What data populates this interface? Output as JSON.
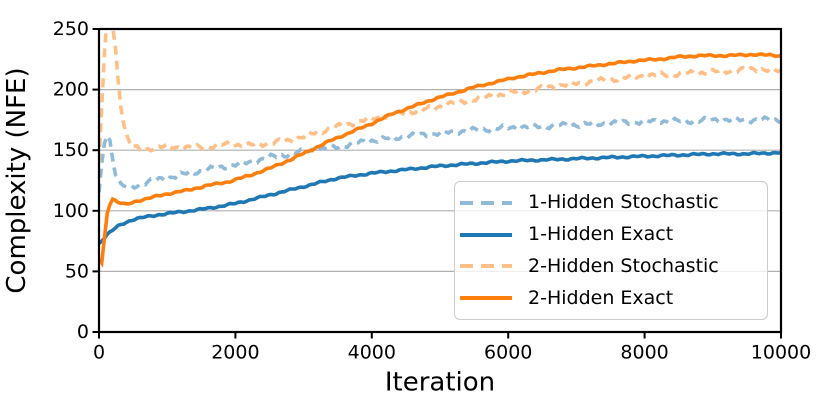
{
  "figure": {
    "background": "#ffffff"
  },
  "chart_data": {
    "type": "line",
    "title": "",
    "xlabel": "Iteration",
    "ylabel": "Complexity (NFE)",
    "xlim": [
      0,
      10000
    ],
    "ylim": [
      0,
      250
    ],
    "xticks": [
      0,
      2000,
      4000,
      6000,
      8000,
      10000
    ],
    "yticks": [
      0,
      50,
      100,
      150,
      200,
      250
    ],
    "grid": "horizontal",
    "grid_color": "#b0b0b0",
    "axis_color": "#000000",
    "legend": {
      "position": "lower-right-inside",
      "border_color": "#cccccc",
      "background": "rgba(255,255,255,0.8)"
    },
    "series": [
      {
        "id": "1-hidden-stochastic",
        "name": "1-Hidden Stochastic",
        "color": "#8fbbd9",
        "line_style": "dashed",
        "jitter": 2.4,
        "points": [
          [
            0,
            113
          ],
          [
            60,
            150
          ],
          [
            100,
            165
          ],
          [
            160,
            158
          ],
          [
            230,
            133
          ],
          [
            320,
            121
          ],
          [
            450,
            119
          ],
          [
            600,
            122
          ],
          [
            800,
            125
          ],
          [
            1000,
            127
          ],
          [
            1300,
            131
          ],
          [
            1600,
            134
          ],
          [
            1900,
            137
          ],
          [
            2200,
            140
          ],
          [
            2500,
            144
          ],
          [
            2800,
            147
          ],
          [
            3100,
            150
          ],
          [
            3400,
            152
          ],
          [
            3700,
            155
          ],
          [
            4000,
            158
          ],
          [
            4300,
            160
          ],
          [
            4600,
            162
          ],
          [
            5000,
            164
          ],
          [
            5400,
            166
          ],
          [
            5800,
            168
          ],
          [
            6200,
            169
          ],
          [
            6600,
            170
          ],
          [
            7000,
            171
          ],
          [
            7400,
            172
          ],
          [
            7800,
            173
          ],
          [
            8200,
            174
          ],
          [
            8600,
            174
          ],
          [
            9000,
            175
          ],
          [
            9400,
            175
          ],
          [
            10000,
            175
          ]
        ]
      },
      {
        "id": "1-hidden-exact",
        "name": "1-Hidden Exact",
        "color": "#1f77b4",
        "line_style": "solid",
        "jitter": 0.9,
        "points": [
          [
            0,
            73
          ],
          [
            60,
            77
          ],
          [
            150,
            82
          ],
          [
            300,
            88
          ],
          [
            500,
            93
          ],
          [
            700,
            95
          ],
          [
            900,
            97
          ],
          [
            1200,
            99
          ],
          [
            1600,
            102
          ],
          [
            2000,
            106
          ],
          [
            2500,
            113
          ],
          [
            3000,
            120
          ],
          [
            3500,
            127
          ],
          [
            4000,
            131
          ],
          [
            4500,
            134
          ],
          [
            5000,
            137
          ],
          [
            5500,
            139
          ],
          [
            6000,
            141
          ],
          [
            6500,
            142
          ],
          [
            7000,
            143
          ],
          [
            7500,
            144
          ],
          [
            8000,
            145
          ],
          [
            8500,
            146
          ],
          [
            9000,
            147
          ],
          [
            9500,
            147
          ],
          [
            10000,
            148
          ]
        ]
      },
      {
        "id": "2-hidden-stochastic",
        "name": "2-Hidden Stochastic",
        "color": "#ffbf86",
        "line_style": "dashed",
        "jitter": 2.4,
        "points": [
          [
            0,
            140
          ],
          [
            60,
            210
          ],
          [
            110,
            258
          ],
          [
            180,
            262
          ],
          [
            240,
            235
          ],
          [
            300,
            195
          ],
          [
            380,
            166
          ],
          [
            460,
            154
          ],
          [
            600,
            150
          ],
          [
            800,
            152
          ],
          [
            1000,
            153
          ],
          [
            1300,
            152
          ],
          [
            1600,
            153
          ],
          [
            1900,
            155
          ],
          [
            2200,
            154
          ],
          [
            2500,
            156
          ],
          [
            2800,
            158
          ],
          [
            3100,
            163
          ],
          [
            3400,
            168
          ],
          [
            3700,
            172
          ],
          [
            4000,
            176
          ],
          [
            4300,
            179
          ],
          [
            4600,
            182
          ],
          [
            4900,
            185
          ],
          [
            5200,
            189
          ],
          [
            5500,
            192
          ],
          [
            5800,
            195
          ],
          [
            6100,
            198
          ],
          [
            6400,
            200
          ],
          [
            6700,
            203
          ],
          [
            7000,
            205
          ],
          [
            7300,
            207
          ],
          [
            7600,
            209
          ],
          [
            7900,
            211
          ],
          [
            8200,
            212
          ],
          [
            8500,
            213
          ],
          [
            8800,
            214
          ],
          [
            9100,
            215
          ],
          [
            9400,
            216
          ],
          [
            9700,
            217
          ],
          [
            10000,
            215
          ]
        ]
      },
      {
        "id": "2-hidden-exact",
        "name": "2-Hidden Exact",
        "color": "#ff7f0e",
        "line_style": "solid",
        "jitter": 0.9,
        "points": [
          [
            0,
            60
          ],
          [
            40,
            57
          ],
          [
            130,
            103
          ],
          [
            200,
            110
          ],
          [
            280,
            107
          ],
          [
            400,
            105
          ],
          [
            550,
            108
          ],
          [
            700,
            110
          ],
          [
            1000,
            114
          ],
          [
            1300,
            117
          ],
          [
            1600,
            121
          ],
          [
            1900,
            124
          ],
          [
            2200,
            129
          ],
          [
            2500,
            135
          ],
          [
            2800,
            142
          ],
          [
            3100,
            150
          ],
          [
            3400,
            158
          ],
          [
            3700,
            165
          ],
          [
            4000,
            172
          ],
          [
            4300,
            180
          ],
          [
            4600,
            186
          ],
          [
            4900,
            192
          ],
          [
            5200,
            197
          ],
          [
            5500,
            202
          ],
          [
            5800,
            206
          ],
          [
            6100,
            210
          ],
          [
            6400,
            213
          ],
          [
            6700,
            216
          ],
          [
            7000,
            218
          ],
          [
            7300,
            220
          ],
          [
            7600,
            222
          ],
          [
            7900,
            224
          ],
          [
            8200,
            225
          ],
          [
            8500,
            227
          ],
          [
            8800,
            228
          ],
          [
            9200,
            228
          ],
          [
            9600,
            229
          ],
          [
            10000,
            228
          ]
        ]
      }
    ]
  }
}
